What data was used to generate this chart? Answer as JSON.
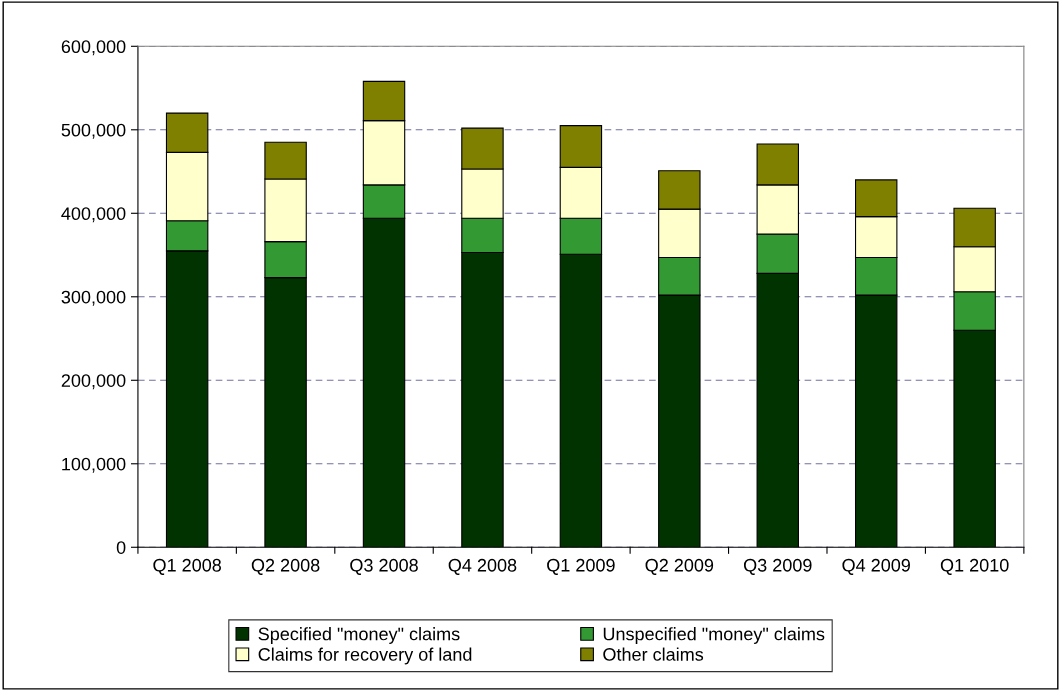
{
  "chart_data": {
    "type": "bar",
    "stacked": true,
    "categories": [
      "Q1 2008",
      "Q2 2008",
      "Q3 2008",
      "Q4 2008",
      "Q1 2009",
      "Q2 2009",
      "Q3 2009",
      "Q4 2009",
      "Q1 2010"
    ],
    "series": [
      {
        "name": "Specified \"money\" claims",
        "color": "#003300",
        "values": [
          355000,
          323000,
          394000,
          353000,
          351000,
          302000,
          328000,
          302000,
          260000
        ]
      },
      {
        "name": "Unspecified \"money\" claims",
        "color": "#339933",
        "values": [
          36000,
          43000,
          40000,
          41000,
          43000,
          45000,
          47000,
          45000,
          46000
        ]
      },
      {
        "name": "Claims for recovery of land",
        "color": "#ffffcc",
        "values": [
          82000,
          75000,
          77000,
          59000,
          61000,
          58000,
          59000,
          49000,
          54000
        ]
      },
      {
        "name": "Other claims",
        "color": "#808000",
        "values": [
          47000,
          44000,
          47000,
          49000,
          50000,
          46000,
          49000,
          44000,
          46000
        ]
      }
    ],
    "ylim": [
      0,
      600000
    ],
    "yticks": [
      0,
      {
        "value": 100000,
        "label": "100,000"
      },
      {
        "value": 200000,
        "label": "200,000"
      },
      {
        "value": 300000,
        "label": "300,000"
      },
      {
        "value": 400000,
        "label": "400,000"
      },
      {
        "value": 500000,
        "label": "500,000"
      },
      {
        "value": 600000,
        "label": "600,000"
      }
    ],
    "grid": "y",
    "legend": "bottom"
  }
}
